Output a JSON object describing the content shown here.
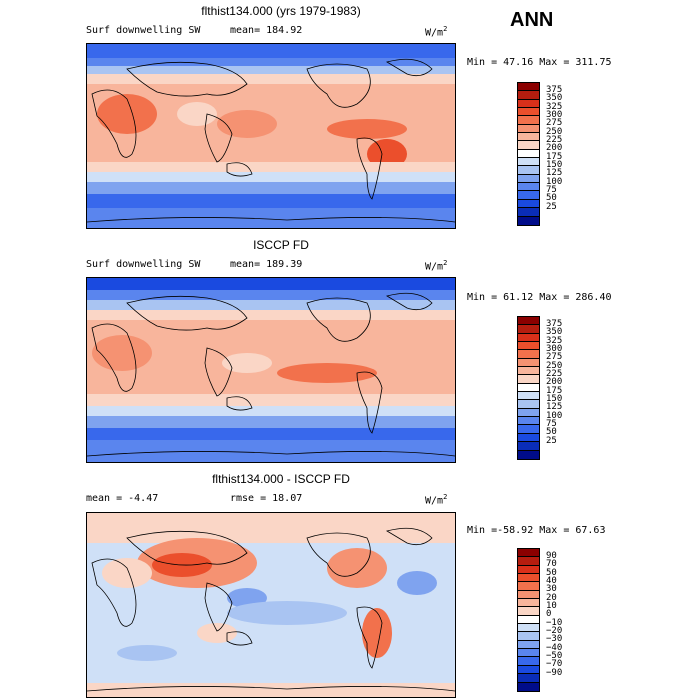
{
  "season": "ANN",
  "panels": [
    {
      "title": "flthist134.000 (yrs 1979-1983)",
      "left_label": "Surf downwelling SW",
      "mid_label": "mean= 184.92",
      "units": "W/m",
      "units_sup": "2",
      "minmax": "Min =  47.16 Max = 311.75",
      "palette": "abs",
      "levels": [
        "375",
        "350",
        "325",
        "300",
        "275",
        "250",
        "225",
        "200",
        "175",
        "150",
        "125",
        "100",
        "75",
        "50",
        "25"
      ]
    },
    {
      "title": "ISCCP FD",
      "left_label": "Surf downwelling SW",
      "mid_label": "mean= 189.39",
      "units": "W/m",
      "units_sup": "2",
      "minmax": "Min =  61.12 Max = 286.40",
      "palette": "abs",
      "levels": [
        "375",
        "350",
        "325",
        "300",
        "275",
        "250",
        "225",
        "200",
        "175",
        "150",
        "125",
        "100",
        "75",
        "50",
        "25"
      ]
    },
    {
      "title": "flthist134.000 - ISCCP FD",
      "left_label": "mean =   -4.47",
      "mid_label": "rmse =   18.07",
      "units": "W/m",
      "units_sup": "2",
      "minmax": "Min =-58.92 Max =  67.63",
      "palette": "diff",
      "levels": [
        "90",
        "70",
        "50",
        "40",
        "30",
        "20",
        "10",
        "0",
        "−10",
        "−20",
        "−30",
        "−40",
        "−50",
        "−70",
        "−90"
      ]
    }
  ],
  "colors": {
    "abs": [
      "#8b0000",
      "#b51d0f",
      "#d9301a",
      "#eb4f2c",
      "#f2714c",
      "#f59272",
      "#f8b59c",
      "#fad6c6",
      "#ffffff",
      "#cfe0f7",
      "#a9c4f2",
      "#7fa3ef",
      "#5a85ee",
      "#3868ec",
      "#1a4ae0",
      "#0a2db8",
      "#000c8a"
    ],
    "diff": [
      "#8b0000",
      "#b51d0f",
      "#d9301a",
      "#eb4f2c",
      "#f2714c",
      "#f59272",
      "#f8b59c",
      "#fad6c6",
      "#ffffff",
      "#cfe0f7",
      "#a9c4f2",
      "#7fa3ef",
      "#5a85ee",
      "#3868ec",
      "#1a4ae0",
      "#0a2db8",
      "#000c8a"
    ]
  }
}
